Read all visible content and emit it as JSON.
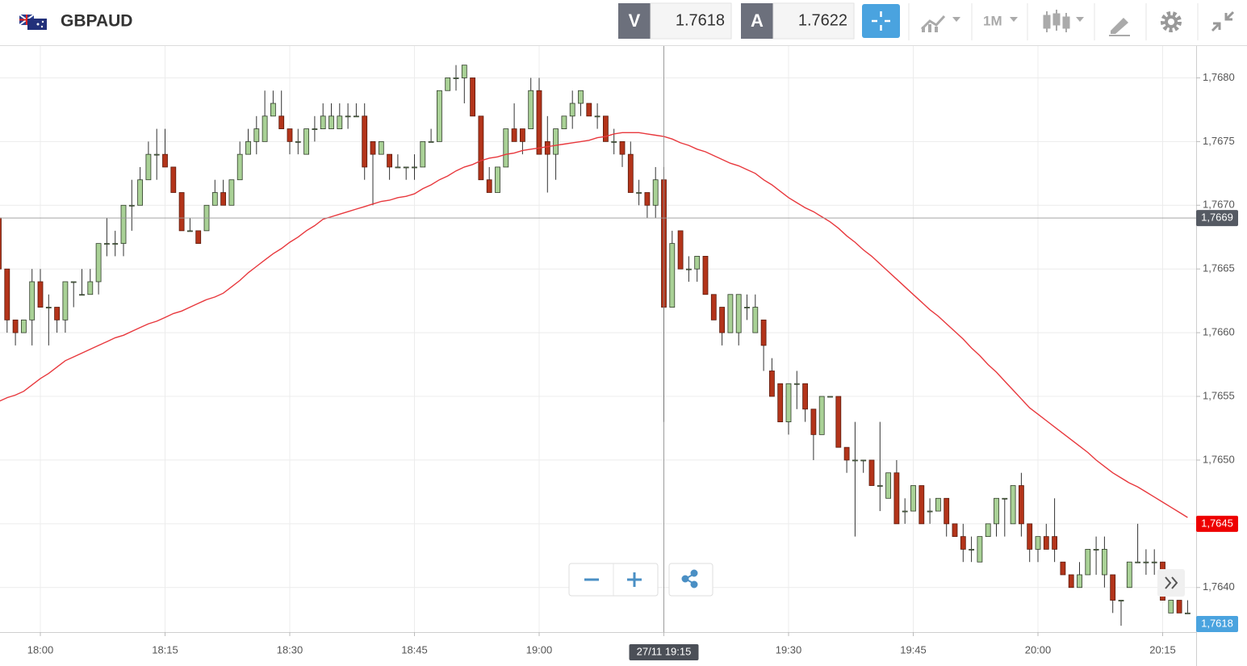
{
  "header": {
    "symbol": "GBPAUD",
    "sell": {
      "label": "V",
      "price": "1.7618"
    },
    "buy": {
      "label": "A",
      "price": "1.7622"
    },
    "timeframe": "1M"
  },
  "chart_data": {
    "type": "candlestick",
    "categories": [
      null,
      null,
      null,
      null,
      null,
      "18:00",
      null,
      null,
      null,
      null,
      null,
      null,
      null,
      null,
      null,
      null,
      null,
      null,
      null,
      null,
      "18:15",
      null,
      null,
      null,
      null,
      null,
      null,
      null,
      null,
      null,
      null,
      null,
      null,
      null,
      null,
      "18:30",
      null,
      null,
      null,
      null,
      null,
      null,
      null,
      null,
      null,
      null,
      null,
      null,
      null,
      null,
      "18:45",
      null,
      null,
      null,
      null,
      null,
      null,
      null,
      null,
      null,
      null,
      null,
      null,
      null,
      null,
      "19:00",
      null,
      null,
      null,
      null,
      null,
      null,
      null,
      null,
      null,
      null,
      null,
      null,
      null,
      null,
      "19:15",
      null,
      null,
      null,
      null,
      null,
      null,
      null,
      null,
      null,
      null,
      null,
      null,
      null,
      null,
      "19:30",
      null,
      null,
      null,
      null,
      null,
      null,
      null,
      null,
      null,
      null,
      null,
      null,
      null,
      null,
      "19:45",
      null,
      null,
      null,
      null,
      null,
      null,
      null,
      null,
      null,
      null,
      null,
      null,
      null,
      null,
      "20:00",
      null,
      null,
      null,
      null,
      null,
      null,
      null,
      null,
      null,
      null,
      null,
      null,
      null,
      null,
      "20:15",
      null,
      null,
      null
    ],
    "open": [
      1.7669,
      1.7665,
      1.7661,
      1.766,
      1.7661,
      1.7664,
      1.7662,
      1.7662,
      1.7661,
      1.7664,
      1.7663,
      1.7663,
      1.7664,
      1.7667,
      1.7667,
      1.7667,
      1.767,
      1.767,
      1.7672,
      1.7674,
      1.7674,
      1.7673,
      1.7671,
      1.7668,
      1.7668,
      1.7668,
      1.767,
      1.7671,
      1.767,
      1.7672,
      1.7674,
      1.7675,
      1.7675,
      1.7677,
      1.7677,
      1.7676,
      1.7675,
      1.7674,
      1.7676,
      1.7676,
      1.7676,
      1.7676,
      1.7677,
      1.7677,
      1.7677,
      1.7675,
      1.7674,
      1.7674,
      1.7673,
      1.7673,
      1.7673,
      1.7673,
      1.7675,
      1.7675,
      1.7679,
      1.768,
      1.768,
      1.768,
      1.7677,
      1.7672,
      1.7671,
      1.7673,
      1.7676,
      1.7676,
      1.7676,
      1.7679,
      1.7675,
      1.7674,
      1.7676,
      1.7677,
      1.7678,
      1.7678,
      1.7677,
      1.7677,
      1.7675,
      1.7675,
      1.7674,
      1.7671,
      1.7671,
      1.767,
      1.7672,
      1.7662,
      1.7668,
      1.7665,
      1.7665,
      1.7666,
      1.7663,
      1.7662,
      1.766,
      1.766,
      1.7662,
      1.766,
      1.7661,
      1.7657,
      1.7656,
      1.7653,
      1.7656,
      1.7656,
      1.7654,
      1.7652,
      1.7655,
      1.7655,
      1.7651,
      1.765,
      1.765,
      1.765,
      1.7648,
      1.7647,
      1.7649,
      1.7646,
      1.7646,
      1.7648,
      1.7646,
      1.7646,
      1.7647,
      1.7645,
      1.7644,
      1.7643,
      1.7642,
      1.7644,
      1.7645,
      1.7647,
      1.7645,
      1.7648,
      1.7645,
      1.7643,
      1.7644,
      1.7644,
      1.7642,
      1.7641,
      1.764,
      1.7641,
      1.7643,
      1.7641,
      1.7641,
      1.7639,
      1.764,
      1.7642,
      1.7642,
      1.7642,
      1.7642,
      1.7638,
      1.7639,
      1.7638
    ],
    "high": [
      1.7669,
      1.7665,
      1.7661,
      1.7661,
      1.7665,
      1.7665,
      1.7663,
      1.7662,
      1.7664,
      1.7664,
      1.7665,
      1.7665,
      1.7667,
      1.7669,
      1.7668,
      1.767,
      1.7672,
      1.7673,
      1.7675,
      1.7676,
      1.7676,
      1.7673,
      1.7671,
      1.7669,
      1.7668,
      1.767,
      1.7672,
      1.7672,
      1.7672,
      1.7675,
      1.7676,
      1.7677,
      1.7679,
      1.7679,
      1.7679,
      1.7676,
      1.7676,
      1.7676,
      1.7677,
      1.7678,
      1.7678,
      1.7678,
      1.7678,
      1.7678,
      1.7678,
      1.7675,
      1.7675,
      1.7674,
      1.7674,
      1.7673,
      1.7674,
      1.7675,
      1.7676,
      1.7679,
      1.768,
      1.7681,
      1.7681,
      1.768,
      1.7677,
      1.7673,
      1.7673,
      1.7676,
      1.7678,
      1.7676,
      1.768,
      1.768,
      1.7677,
      1.7676,
      1.7677,
      1.7679,
      1.7679,
      1.7678,
      1.7678,
      1.7677,
      1.7676,
      1.7675,
      1.7675,
      1.7672,
      1.7671,
      1.7673,
      1.7673,
      1.7668,
      1.7668,
      1.7666,
      1.7666,
      1.7666,
      1.7663,
      1.7662,
      1.7663,
      1.7663,
      1.7663,
      1.7663,
      1.7661,
      1.7658,
      1.7656,
      1.7656,
      1.7657,
      1.7656,
      1.7654,
      1.7655,
      1.7655,
      1.7655,
      1.7651,
      1.7653,
      1.765,
      1.765,
      1.7653,
      1.7649,
      1.765,
      1.7647,
      1.7648,
      1.7648,
      1.7647,
      1.7647,
      1.7647,
      1.7645,
      1.7645,
      1.7644,
      1.7644,
      1.7645,
      1.7647,
      1.7647,
      1.7648,
      1.7649,
      1.7645,
      1.7644,
      1.7645,
      1.7647,
      1.7642,
      1.7641,
      1.7642,
      1.7643,
      1.7644,
      1.7644,
      1.7641,
      1.7639,
      1.7642,
      1.7645,
      1.7643,
      1.7643,
      1.7642,
      1.7639,
      1.7639,
      1.7639
    ],
    "low": [
      1.7665,
      1.766,
      1.7659,
      1.766,
      1.7659,
      1.7662,
      1.7659,
      1.766,
      1.766,
      1.7662,
      1.7663,
      1.7663,
      1.7663,
      1.7666,
      1.7666,
      1.7666,
      1.7668,
      1.767,
      1.7672,
      1.7672,
      1.7673,
      1.7671,
      1.7668,
      1.7668,
      1.7667,
      1.7668,
      1.767,
      1.767,
      1.767,
      1.7672,
      1.7674,
      1.7674,
      1.7675,
      1.7677,
      1.7676,
      1.7674,
      1.7674,
      1.7674,
      1.7675,
      1.7676,
      1.7676,
      1.7676,
      1.7676,
      1.7677,
      1.7672,
      1.767,
      1.7674,
      1.7672,
      1.7673,
      1.7672,
      1.7672,
      1.7673,
      1.7675,
      1.7675,
      1.7679,
      1.7679,
      1.7678,
      1.7677,
      1.7672,
      1.7671,
      1.7671,
      1.7673,
      1.7675,
      1.7674,
      1.7676,
      1.7674,
      1.7671,
      1.7672,
      1.7676,
      1.7676,
      1.7677,
      1.7677,
      1.7676,
      1.7675,
      1.7674,
      1.7673,
      1.7671,
      1.767,
      1.7669,
      1.7669,
      1.7653,
      1.7662,
      1.7665,
      1.7664,
      1.7664,
      1.7663,
      1.7661,
      1.7659,
      1.766,
      1.7659,
      1.7661,
      1.766,
      1.7657,
      1.7655,
      1.7653,
      1.7652,
      1.7654,
      1.7653,
      1.765,
      1.7652,
      1.7655,
      1.7651,
      1.7649,
      1.7644,
      1.7649,
      1.7648,
      1.7646,
      1.7647,
      1.7645,
      1.7645,
      1.7646,
      1.7645,
      1.7645,
      1.7646,
      1.7644,
      1.7644,
      1.7642,
      1.7642,
      1.7642,
      1.7644,
      1.7644,
      1.7644,
      1.7645,
      1.7644,
      1.7642,
      1.7642,
      1.7643,
      1.7642,
      1.7641,
      1.764,
      1.764,
      1.7641,
      1.7641,
      1.764,
      1.7638,
      1.7637,
      1.764,
      1.7642,
      1.7641,
      1.7641,
      1.7639,
      1.7638,
      1.7638,
      1.7638
    ],
    "close": [
      1.7665,
      1.7661,
      1.766,
      1.7661,
      1.7664,
      1.7662,
      1.7662,
      1.7661,
      1.7664,
      1.7664,
      1.7663,
      1.7664,
      1.7667,
      1.7667,
      1.7667,
      1.767,
      1.767,
      1.7672,
      1.7674,
      1.7674,
      1.7673,
      1.7671,
      1.7668,
      1.7668,
      1.7667,
      1.767,
      1.7671,
      1.767,
      1.7672,
      1.7674,
      1.7675,
      1.7676,
      1.7677,
      1.7678,
      1.7676,
      1.7675,
      1.7675,
      1.7676,
      1.7676,
      1.7677,
      1.7677,
      1.7677,
      1.7677,
      1.7677,
      1.7673,
      1.7674,
      1.7675,
      1.7673,
      1.7673,
      1.7673,
      1.7673,
      1.7675,
      1.7675,
      1.7679,
      1.768,
      1.768,
      1.7681,
      1.7677,
      1.7672,
      1.7671,
      1.7673,
      1.7676,
      1.7675,
      1.7675,
      1.7679,
      1.7674,
      1.7674,
      1.7676,
      1.7677,
      1.7678,
      1.7679,
      1.7677,
      1.7677,
      1.7675,
      1.7675,
      1.7674,
      1.7671,
      1.7671,
      1.767,
      1.7672,
      1.7662,
      1.7667,
      1.7665,
      1.7665,
      1.7666,
      1.7663,
      1.7661,
      1.766,
      1.7663,
      1.7663,
      1.7662,
      1.7662,
      1.7659,
      1.7655,
      1.7653,
      1.7656,
      1.7656,
      1.7654,
      1.7652,
      1.7655,
      1.7655,
      1.7651,
      1.765,
      1.765,
      1.765,
      1.7648,
      1.7648,
      1.7649,
      1.7645,
      1.7646,
      1.7648,
      1.7645,
      1.7646,
      1.7647,
      1.7645,
      1.7644,
      1.7643,
      1.7643,
      1.7644,
      1.7645,
      1.7647,
      1.7647,
      1.7648,
      1.7645,
      1.7643,
      1.7644,
      1.7643,
      1.7643,
      1.7641,
      1.764,
      1.7641,
      1.7643,
      1.7643,
      1.7643,
      1.7639,
      1.7639,
      1.7642,
      1.7642,
      1.7642,
      1.7642,
      1.7639,
      1.7639,
      1.7638,
      1.7638
    ],
    "up_color": "#a9d196",
    "down_color": "#b3341a",
    "moving_average": {
      "color": "#e8383d",
      "values": [
        1.76546,
        1.76549,
        1.76551,
        1.76554,
        1.76559,
        1.76564,
        1.76568,
        1.76573,
        1.76578,
        1.76581,
        1.76584,
        1.76587,
        1.7659,
        1.76593,
        1.76596,
        1.76598,
        1.76601,
        1.76604,
        1.76607,
        1.76609,
        1.76612,
        1.76615,
        1.76617,
        1.7662,
        1.76623,
        1.76626,
        1.76628,
        1.76631,
        1.76636,
        1.76641,
        1.76647,
        1.76652,
        1.76657,
        1.76662,
        1.76666,
        1.76671,
        1.76675,
        1.7668,
        1.76684,
        1.76689,
        1.76691,
        1.76693,
        1.76695,
        1.76697,
        1.76699,
        1.76701,
        1.76703,
        1.76704,
        1.76706,
        1.76707,
        1.76709,
        1.76713,
        1.76716,
        1.7672,
        1.76723,
        1.76727,
        1.7673,
        1.76732,
        1.76735,
        1.76737,
        1.76738,
        1.7674,
        1.76741,
        1.76743,
        1.76744,
        1.76745,
        1.76746,
        1.76747,
        1.76748,
        1.76749,
        1.7675,
        1.76751,
        1.76753,
        1.76754,
        1.76756,
        1.76757,
        1.76757,
        1.76757,
        1.76756,
        1.76755,
        1.76754,
        1.76752,
        1.76749,
        1.76747,
        1.76744,
        1.76742,
        1.76739,
        1.76736,
        1.76733,
        1.76731,
        1.76728,
        1.76725,
        1.7672,
        1.76716,
        1.76711,
        1.76706,
        1.76702,
        1.76698,
        1.76695,
        1.76691,
        1.76687,
        1.76682,
        1.76676,
        1.76671,
        1.76665,
        1.7666,
        1.76654,
        1.76648,
        1.76642,
        1.76636,
        1.7663,
        1.76624,
        1.76618,
        1.76613,
        1.76607,
        1.76601,
        1.76595,
        1.76588,
        1.76582,
        1.76575,
        1.76569,
        1.76562,
        1.76555,
        1.76548,
        1.76541,
        1.76536,
        1.76531,
        1.76526,
        1.76521,
        1.76516,
        1.76511,
        1.76506,
        1.765,
        1.76495,
        1.7649,
        1.76486,
        1.76482,
        1.76479,
        1.76475,
        1.76471,
        1.76467,
        1.76463,
        1.76459,
        1.76455
      ],
      "last_label": {
        "value": 1.7645,
        "label": "1,7645"
      }
    },
    "crosshair": {
      "label": "27/11 19:15",
      "price": {
        "value": 1.7669,
        "label": "1,7669"
      }
    },
    "bid_marker": {
      "value": 1.7618,
      "label": "1,7618"
    },
    "ylim": [
      1.76365,
      1.76825
    ],
    "yticks": [
      {
        "value": 1.764,
        "label": "1,7640"
      },
      {
        "value": 1.7645,
        "label": "1,7645"
      },
      {
        "value": 1.765,
        "label": "1,7650"
      },
      {
        "value": 1.7655,
        "label": "1,7655"
      },
      {
        "value": 1.766,
        "label": "1,7660"
      },
      {
        "value": 1.7665,
        "label": "1,7665"
      },
      {
        "value": 1.767,
        "label": "1,7670"
      },
      {
        "value": 1.7675,
        "label": "1,7675"
      },
      {
        "value": 1.768,
        "label": "1,7680"
      }
    ],
    "grid": true
  }
}
